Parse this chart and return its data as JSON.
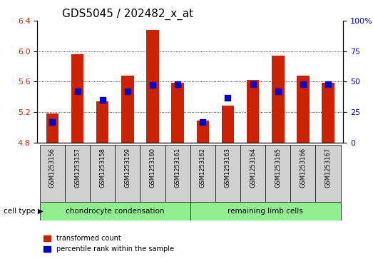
{
  "title": "GDS5045 / 202482_x_at",
  "samples": [
    "GSM1253156",
    "GSM1253157",
    "GSM1253158",
    "GSM1253159",
    "GSM1253160",
    "GSM1253161",
    "GSM1253162",
    "GSM1253163",
    "GSM1253164",
    "GSM1253165",
    "GSM1253166",
    "GSM1253167"
  ],
  "bar_values": [
    5.18,
    5.96,
    5.34,
    5.68,
    6.28,
    5.58,
    5.09,
    5.28,
    5.62,
    5.94,
    5.68,
    5.58
  ],
  "percentile_values": [
    17,
    42,
    35,
    42,
    47,
    48,
    17,
    37,
    48,
    42,
    48,
    48
  ],
  "bar_bottom": 4.8,
  "ylim_left": [
    4.8,
    6.4
  ],
  "ylim_right": [
    0,
    100
  ],
  "yticks_left": [
    4.8,
    5.2,
    5.6,
    6.0,
    6.4
  ],
  "yticks_right": [
    0,
    25,
    50,
    75,
    100
  ],
  "ytick_labels_right": [
    "0",
    "25",
    "50",
    "75",
    "100%"
  ],
  "bar_color": "#cc2200",
  "dot_color": "#0000cc",
  "grid_color": "#000000",
  "cell_type_groups": [
    {
      "label": "chondrocyte condensation",
      "start": 0,
      "end": 5,
      "color": "#90ee90"
    },
    {
      "label": "remaining limb cells",
      "start": 6,
      "end": 11,
      "color": "#90ee90"
    }
  ],
  "cell_type_label": "cell type",
  "legend_items": [
    {
      "label": "transformed count",
      "color": "#cc2200"
    },
    {
      "label": "percentile rank within the sample",
      "color": "#0000cc"
    }
  ],
  "bar_width": 0.5,
  "dot_size": 30,
  "tick_label_fontsize": 7,
  "title_fontsize": 11,
  "axis_label_color_left": "#cc2200",
  "axis_label_color_right": "#0000cc",
  "bg_color_plot": "#e8e8e8",
  "bg_color_cell": "#d0d0d0"
}
